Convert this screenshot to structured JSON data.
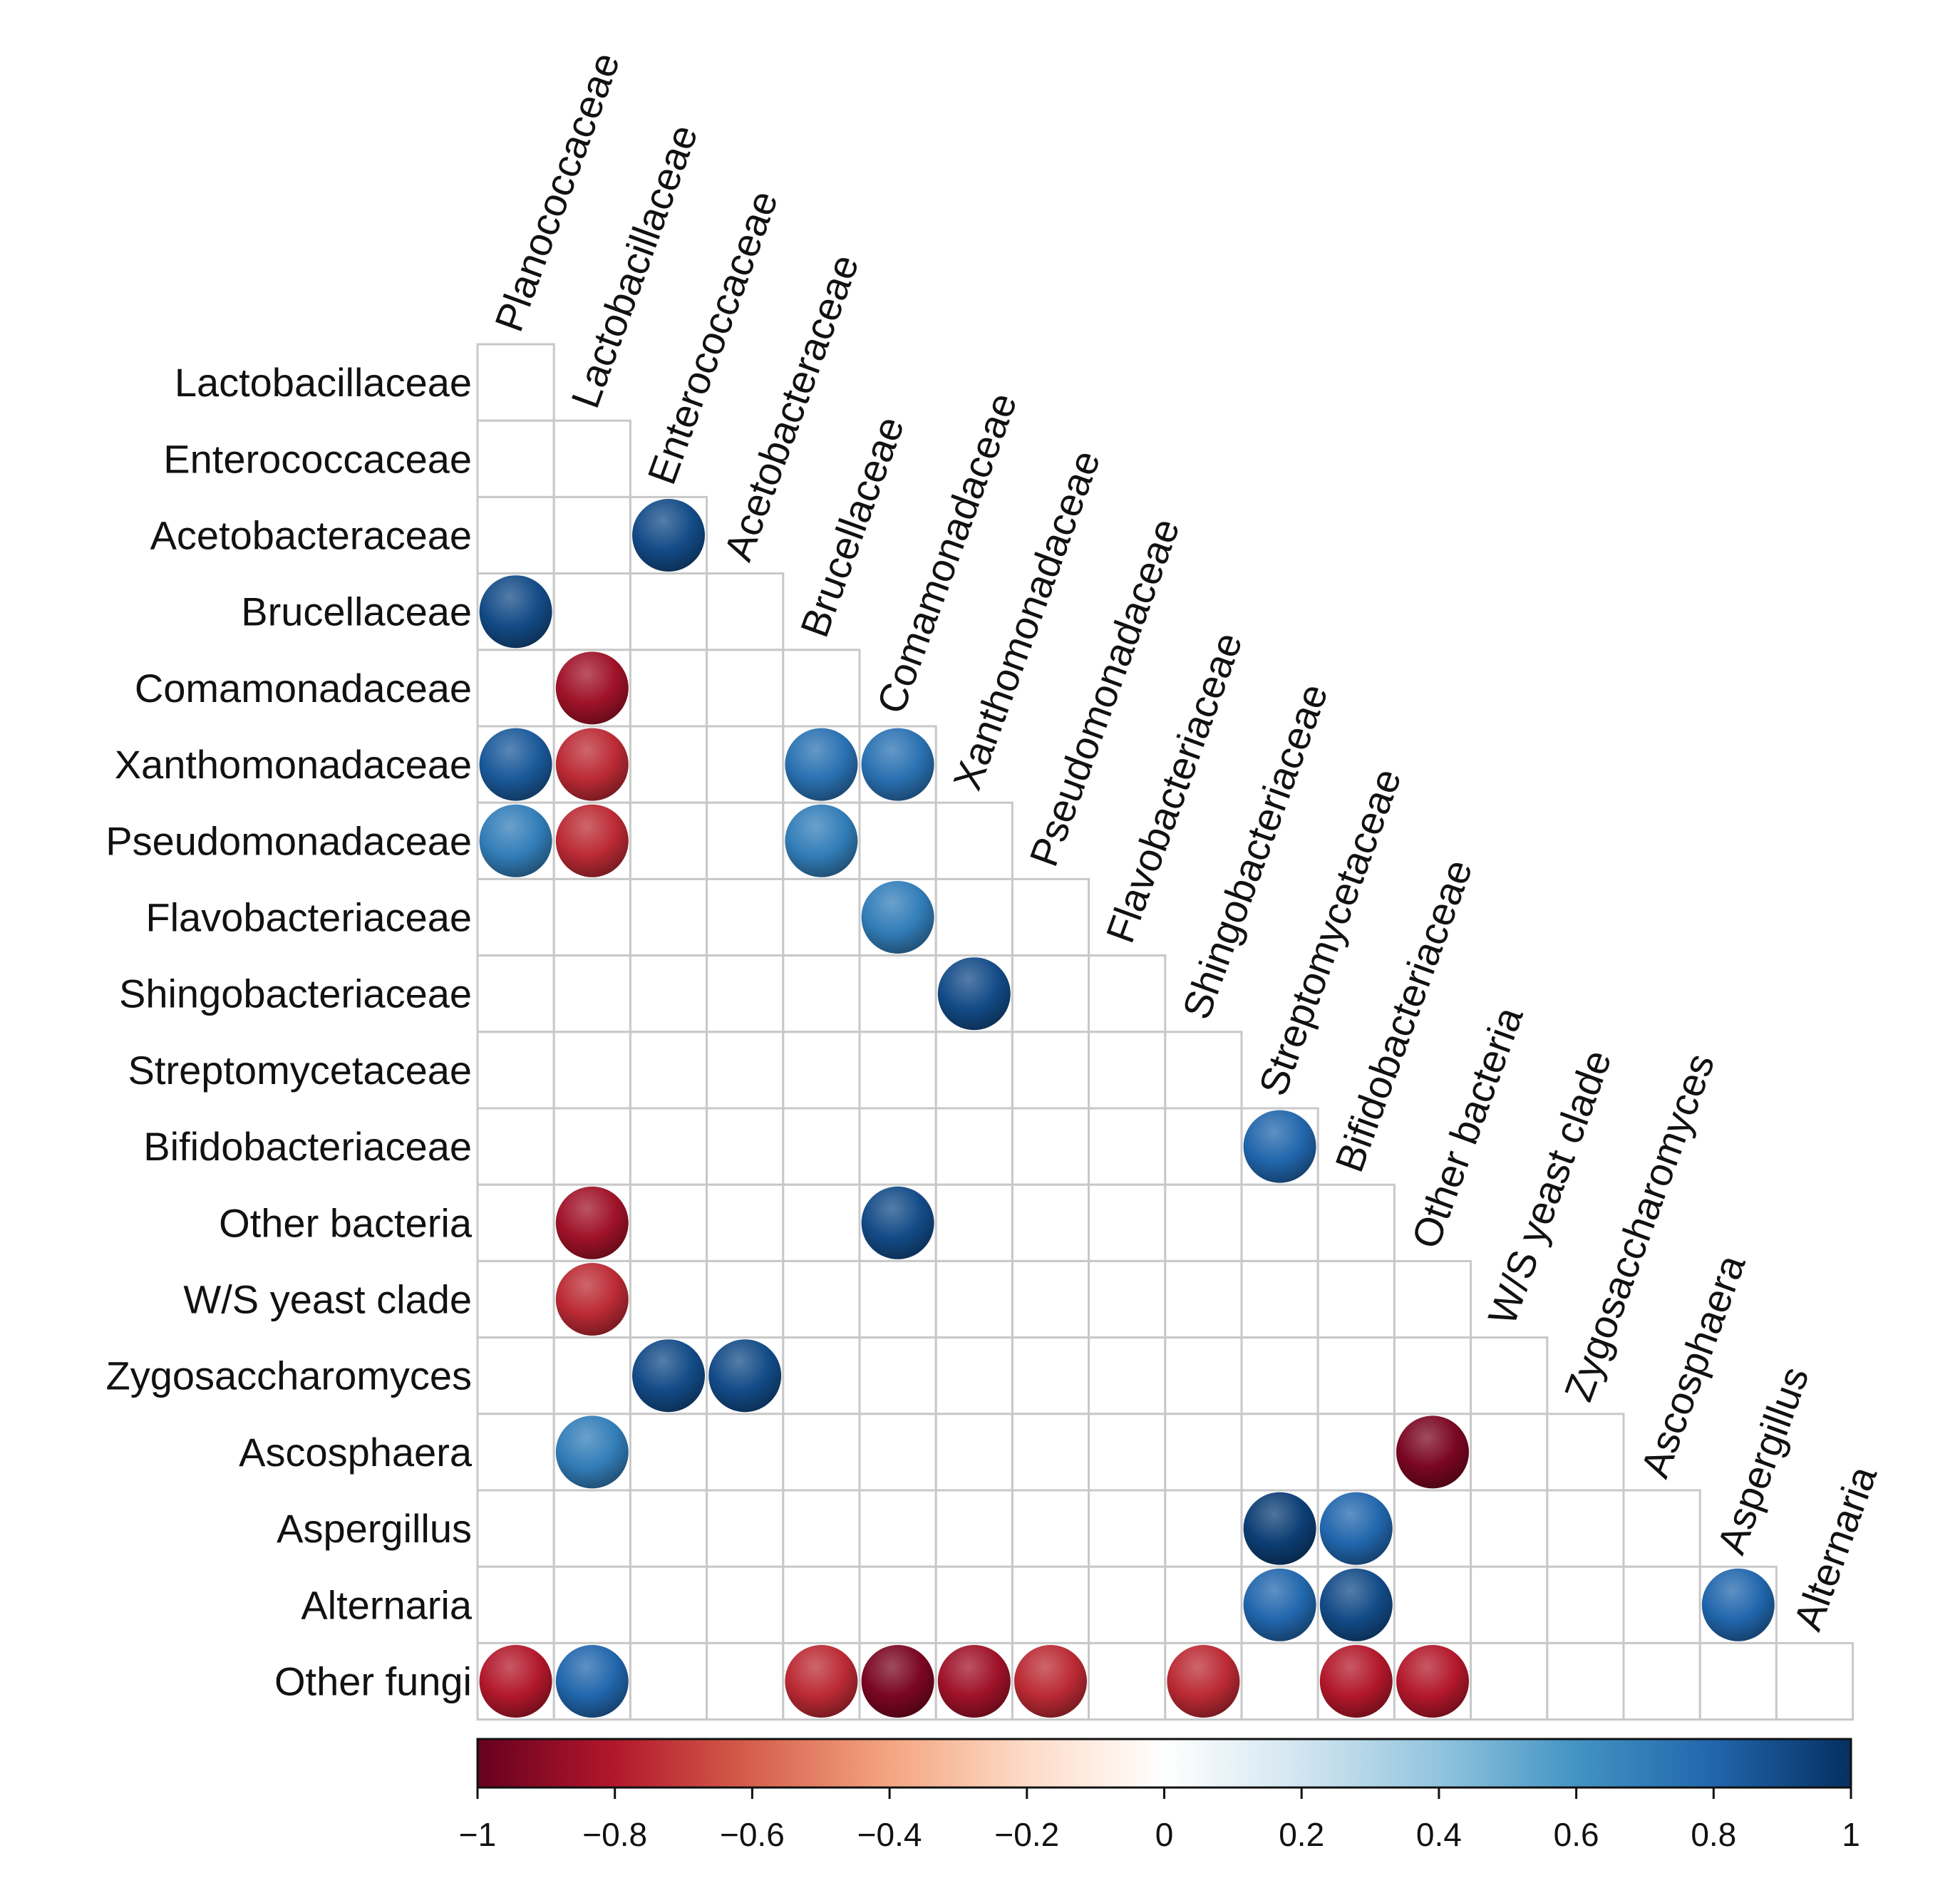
{
  "chart_data": {
    "type": "heatmap",
    "subtype": "correlation-circle-lower-triangle",
    "title": "",
    "columns": [
      "Planococcaceae",
      "Lactobacillaceae",
      "Enterococcaceae",
      "Acetobacteraceae",
      "Brucellaceae",
      "Comamonadaceae",
      "Xanthomonadaceae",
      "Pseudomonadaceae",
      "Flavobacteriaceae",
      "Shingobacteriaceae",
      "Streptomycetaceae",
      "Bifidobacteriaceae",
      "Other bacteria",
      "W/S yeast clade",
      "Zygosaccharomyces",
      "Ascosphaera",
      "Aspergillus",
      "Alternaria"
    ],
    "rows": [
      "Lactobacillaceae",
      "Enterococcaceae",
      "Acetobacteraceae",
      "Brucellaceae",
      "Comamonadaceae",
      "Xanthomonadaceae",
      "Pseudomonadaceae",
      "Flavobacteriaceae",
      "Shingobacteriaceae",
      "Streptomycetaceae",
      "Bifidobacteriaceae",
      "Other bacteria",
      "W/S yeast clade",
      "Zygosaccharomyces",
      "Ascosphaera",
      "Aspergillus",
      "Alternaria",
      "Other fungi"
    ],
    "significant_correlations": [
      {
        "row": "Acetobacteraceae",
        "column": "Enterococcaceae",
        "r": 0.9
      },
      {
        "row": "Brucellaceae",
        "column": "Planococcaceae",
        "r": 0.9
      },
      {
        "row": "Comamonadaceae",
        "column": "Lactobacillaceae",
        "r": -0.85
      },
      {
        "row": "Xanthomonadaceae",
        "column": "Planococcaceae",
        "r": 0.85
      },
      {
        "row": "Xanthomonadaceae",
        "column": "Lactobacillaceae",
        "r": -0.75
      },
      {
        "row": "Xanthomonadaceae",
        "column": "Brucellaceae",
        "r": 0.75
      },
      {
        "row": "Xanthomonadaceae",
        "column": "Comamonadaceae",
        "r": 0.75
      },
      {
        "row": "Pseudomonadaceae",
        "column": "Planococcaceae",
        "r": 0.7
      },
      {
        "row": "Pseudomonadaceae",
        "column": "Lactobacillaceae",
        "r": -0.75
      },
      {
        "row": "Pseudomonadaceae",
        "column": "Brucellaceae",
        "r": 0.7
      },
      {
        "row": "Flavobacteriaceae",
        "column": "Comamonadaceae",
        "r": 0.7
      },
      {
        "row": "Shingobacteriaceae",
        "column": "Xanthomonadaceae",
        "r": 0.9
      },
      {
        "row": "Bifidobacteriaceae",
        "column": "Streptomycetaceae",
        "r": 0.8
      },
      {
        "row": "Other bacteria",
        "column": "Lactobacillaceae",
        "r": -0.85
      },
      {
        "row": "Other bacteria",
        "column": "Comamonadaceae",
        "r": 0.9
      },
      {
        "row": "W/S yeast clade",
        "column": "Lactobacillaceae",
        "r": -0.75
      },
      {
        "row": "Zygosaccharomyces",
        "column": "Enterococcaceae",
        "r": 0.9
      },
      {
        "row": "Zygosaccharomyces",
        "column": "Acetobacteraceae",
        "r": 0.9
      },
      {
        "row": "Ascosphaera",
        "column": "Other bacteria",
        "r": -0.95
      },
      {
        "row": "Ascosphaera",
        "column": "Lactobacillaceae",
        "r": 0.7
      },
      {
        "row": "Aspergillus",
        "column": "Streptomycetaceae",
        "r": 0.95
      },
      {
        "row": "Aspergillus",
        "column": "Bifidobacteriaceae",
        "r": 0.8
      },
      {
        "row": "Alternaria",
        "column": "Streptomycetaceae",
        "r": 0.8
      },
      {
        "row": "Alternaria",
        "column": "Bifidobacteriaceae",
        "r": 0.9
      },
      {
        "row": "Alternaria",
        "column": "Aspergillus",
        "r": 0.8
      },
      {
        "row": "Other fungi",
        "column": "Planococcaceae",
        "r": -0.8
      },
      {
        "row": "Other fungi",
        "column": "Lactobacillaceae",
        "r": 0.8
      },
      {
        "row": "Other fungi",
        "column": "Brucellaceae",
        "r": -0.75
      },
      {
        "row": "Other fungi",
        "column": "Comamonadaceae",
        "r": -0.95
      },
      {
        "row": "Other fungi",
        "column": "Xanthomonadaceae",
        "r": -0.85
      },
      {
        "row": "Other fungi",
        "column": "Pseudomonadaceae",
        "r": -0.75
      },
      {
        "row": "Other fungi",
        "column": "Shingobacteriaceae",
        "r": -0.75
      },
      {
        "row": "Other fungi",
        "column": "Bifidobacteriaceae",
        "r": -0.8
      },
      {
        "row": "Other fungi",
        "column": "Other bacteria",
        "r": -0.8
      }
    ],
    "colorbar": {
      "range": [
        -1,
        1
      ],
      "ticks": [
        -1,
        -0.8,
        -0.6,
        -0.4,
        -0.2,
        0,
        0.2,
        0.4,
        0.6,
        0.8,
        1
      ],
      "tick_labels": [
        "−1",
        "−0.8",
        "−0.6",
        "−0.4",
        "−0.2",
        "0",
        "0.2",
        "0.4",
        "0.6",
        "0.8",
        "1"
      ],
      "colors": [
        "#67001f",
        "#b2182b",
        "#d6604d",
        "#f4a582",
        "#fddbc7",
        "#ffffff",
        "#d1e5f0",
        "#92c5de",
        "#4393c3",
        "#2166ac",
        "#053061"
      ],
      "position": "bottom"
    }
  }
}
